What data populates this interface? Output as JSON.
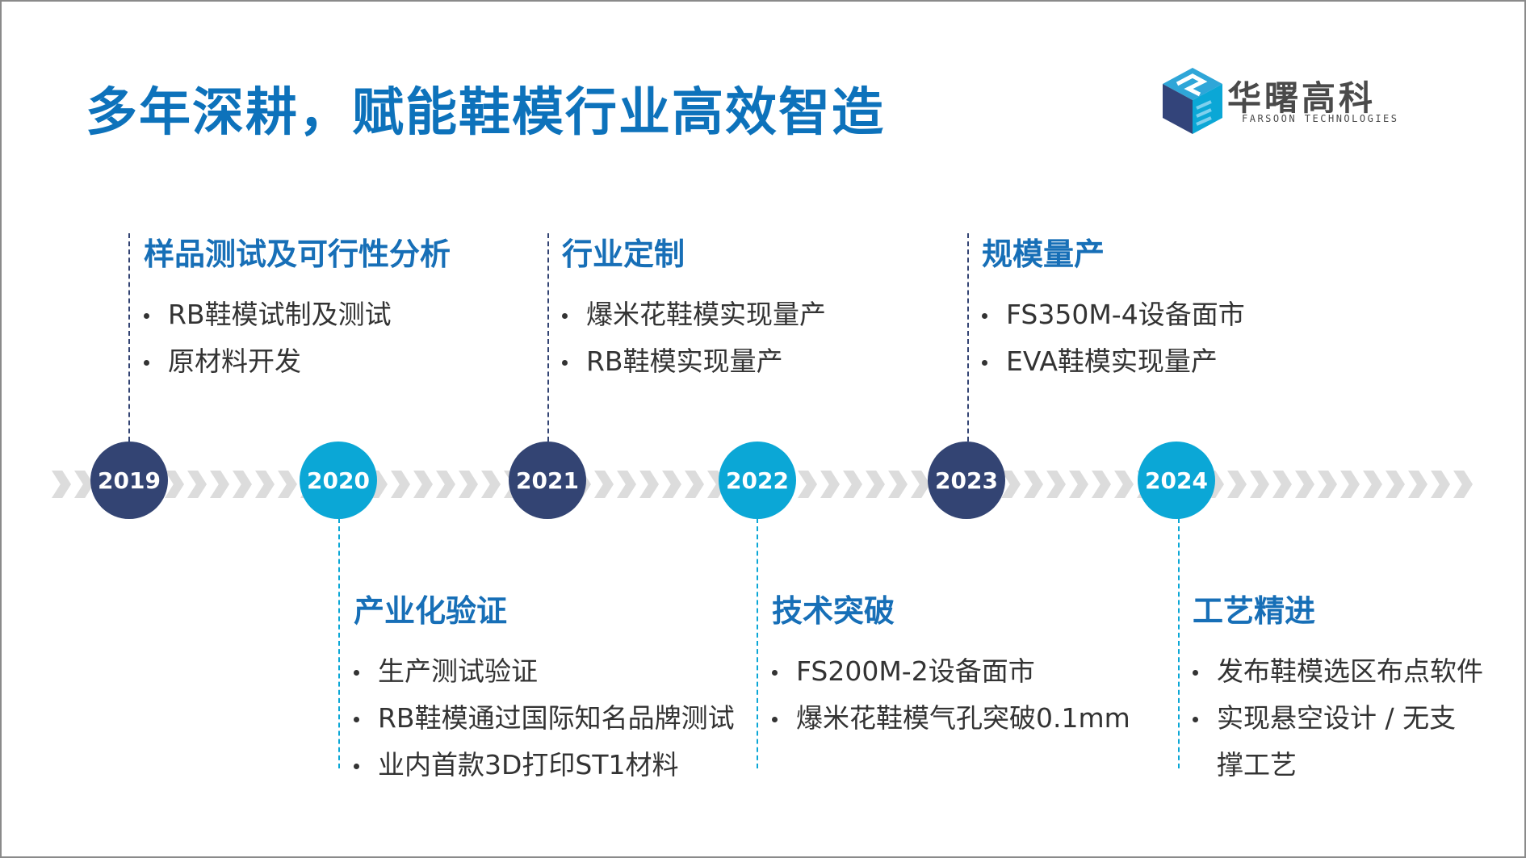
{
  "title": "多年深耕，赋能鞋模行业高效智造",
  "logo": {
    "cn": "华曙高科",
    "en": "FARSOON TECHNOLOGIES"
  },
  "colors": {
    "title": "#0d72bb",
    "navy": "#334473",
    "cyan": "#0ba7d6",
    "heading": "#176fb7"
  },
  "milestones": [
    {
      "year": "2019",
      "heading": "样品测试及可行性分析",
      "items": [
        "RB鞋模试制及测试",
        "原材料开发"
      ]
    },
    {
      "year": "2020",
      "heading": "产业化验证",
      "items": [
        "生产测试验证",
        "RB鞋模通过国际知名品牌测试",
        "业内首款3D打印ST1材料"
      ]
    },
    {
      "year": "2021",
      "heading": "行业定制",
      "items": [
        "爆米花鞋模实现量产",
        "RB鞋模实现量产"
      ]
    },
    {
      "year": "2022",
      "heading": "技术突破",
      "items": [
        "FS200M-2设备面市",
        "爆米花鞋模气孔突破0.1mm"
      ]
    },
    {
      "year": "2023",
      "heading": "规模量产",
      "items": [
        "FS350M-4设备面市",
        "EVA鞋模实现量产"
      ]
    },
    {
      "year": "2024",
      "heading": "工艺精进",
      "items": [
        "发布鞋模选区布点软件",
        "实现悬空设计 / 无支",
        "撑工艺"
      ]
    }
  ]
}
